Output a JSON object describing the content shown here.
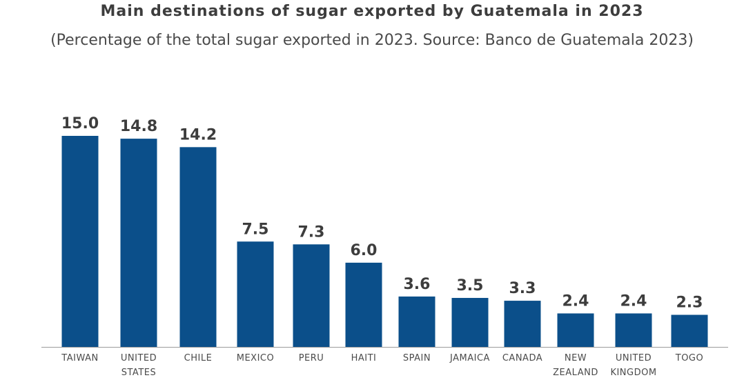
{
  "chart_data": {
    "type": "bar",
    "title": "Main destinations of sugar exported by Guatemala in 2023",
    "subtitle": "(Percentage of the total sugar exported in 2023. Source: Banco de Guatemala 2023)",
    "categories": [
      [
        "TAIWAN"
      ],
      [
        "UNITED",
        "STATES"
      ],
      [
        "CHILE"
      ],
      [
        "MEXICO"
      ],
      [
        "PERU"
      ],
      [
        "HAITI"
      ],
      [
        "SPAIN"
      ],
      [
        "JAMAICA"
      ],
      [
        "CANADA"
      ],
      [
        "NEW",
        "ZEALAND"
      ],
      [
        "UNITED",
        "KINGDOM"
      ],
      [
        "TOGO"
      ]
    ],
    "values": [
      15.0,
      14.8,
      14.2,
      7.5,
      7.3,
      6.0,
      3.6,
      3.5,
      3.3,
      2.4,
      2.4,
      2.3
    ],
    "value_labels": [
      "15.0",
      "14.8",
      "14.2",
      "7.5",
      "7.3",
      "6.0",
      "3.6",
      "3.5",
      "3.3",
      "2.4",
      "2.4",
      "2.3"
    ],
    "xlabel": "",
    "ylabel": "",
    "ylim": [
      0,
      15
    ],
    "grid": false,
    "legend": "none",
    "bar_color": "#0b4f8a",
    "baseline_color": "#9a9a9a",
    "label_color": "#3d3d3d"
  }
}
